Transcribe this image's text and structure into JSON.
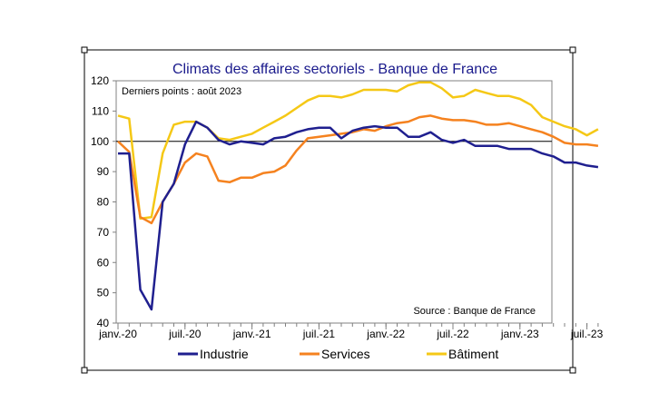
{
  "chart_data": {
    "type": "line",
    "title": "Climats des affaires sectoriels  - Banque de France",
    "note": "Derniers points : août 2023",
    "source": "Source : Banque de France",
    "reference_line": 100,
    "ylim": [
      40,
      120
    ],
    "yticks": [
      40,
      50,
      60,
      70,
      80,
      90,
      100,
      110,
      120
    ],
    "x": [
      "2020-01",
      "2020-02",
      "2020-03",
      "2020-04",
      "2020-05",
      "2020-06",
      "2020-07",
      "2020-08",
      "2020-09",
      "2020-10",
      "2020-11",
      "2020-12",
      "2021-01",
      "2021-02",
      "2021-03",
      "2021-04",
      "2021-05",
      "2021-06",
      "2021-07",
      "2021-08",
      "2021-09",
      "2021-10",
      "2021-11",
      "2021-12",
      "2022-01",
      "2022-02",
      "2022-03",
      "2022-04",
      "2022-05",
      "2022-06",
      "2022-07",
      "2022-08",
      "2022-09",
      "2022-10",
      "2022-11",
      "2022-12",
      "2023-01",
      "2023-02",
      "2023-03",
      "2023-04",
      "2023-05",
      "2023-06",
      "2023-07",
      "2023-08"
    ],
    "xtick_labels": [
      {
        "x": "2020-01",
        "label": "janv.-20"
      },
      {
        "x": "2020-07",
        "label": "juil.-20"
      },
      {
        "x": "2021-01",
        "label": "janv.-21"
      },
      {
        "x": "2021-07",
        "label": "juil.-21"
      },
      {
        "x": "2022-01",
        "label": "janv.-22"
      },
      {
        "x": "2022-07",
        "label": "juil.-22"
      },
      {
        "x": "2023-01",
        "label": "janv.-23"
      },
      {
        "x": "2023-07",
        "label": "juil.-23"
      }
    ],
    "legend_position": "bottom",
    "grid": false,
    "series": [
      {
        "name": "Industrie",
        "color": "#1f1f8f",
        "values": [
          96,
          96,
          51,
          44.5,
          80,
          86,
          99,
          106.5,
          104.5,
          100.5,
          99,
          100,
          99.5,
          99,
          101,
          101.5,
          103,
          104,
          104.5,
          104.5,
          101,
          103.5,
          104.5,
          105,
          104.5,
          104.5,
          101.5,
          101.5,
          103,
          100.5,
          99.5,
          100.5,
          98.5,
          98.5,
          98.5,
          97.5,
          97.5,
          97.5,
          96,
          95,
          93,
          93,
          92,
          91.5
        ]
      },
      {
        "name": "Services",
        "color": "#f5821f",
        "values": [
          100,
          96.5,
          75,
          73,
          80,
          86,
          93,
          96,
          95,
          87,
          86.5,
          88,
          88,
          89.5,
          90,
          92,
          97,
          101,
          101.5,
          102,
          102.5,
          103,
          104,
          103.5,
          105,
          106,
          106.5,
          108,
          108.5,
          107.5,
          107,
          107,
          106.5,
          105.5,
          105.5,
          106,
          105,
          104,
          103,
          101.5,
          99.5,
          99,
          99,
          98.5
        ]
      },
      {
        "name": "Bâtiment",
        "color": "#f5c816",
        "values": [
          108.5,
          107.5,
          74.5,
          75,
          96,
          105.5,
          106.5,
          106.5,
          104.5,
          101,
          100.5,
          101.5,
          102.5,
          104.5,
          106.5,
          108.5,
          111,
          113.5,
          115,
          115,
          114.5,
          115.5,
          117,
          117,
          117,
          116.5,
          118.5,
          119.5,
          119.5,
          117.5,
          114.5,
          115,
          117,
          116,
          115,
          115,
          114,
          112,
          108,
          106.5,
          105,
          104,
          102,
          104
        ]
      }
    ]
  }
}
